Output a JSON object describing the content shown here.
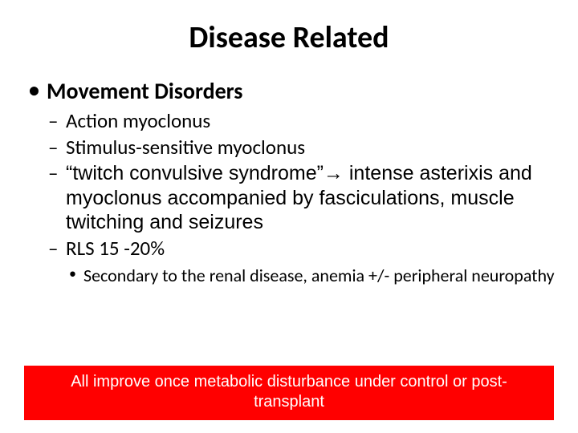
{
  "title": "Disease Related",
  "heading": "Movement Disorders",
  "items": [
    "Action myoclonus",
    "Stimulus-sensitive myoclonus",
    "“twitch convulsive syndrome”→ intense asterixis and myoclonus accompanied by fasciculations, muscle twitching and seizures",
    "RLS 15 -20%"
  ],
  "subitem": "Secondary to the renal disease, anemia +/- peripheral neuropathy",
  "callout": {
    "text": "All improve once metabolic disturbance under control or post-transplant",
    "bg_color": "#ff0000",
    "fg_color": "#ffffff"
  },
  "colors": {
    "text": "#000000",
    "background": "#ffffff"
  },
  "fontsizes": {
    "title": 38,
    "lvl1": 28,
    "lvl2": 25,
    "lvl3": 22,
    "callout": 20
  }
}
